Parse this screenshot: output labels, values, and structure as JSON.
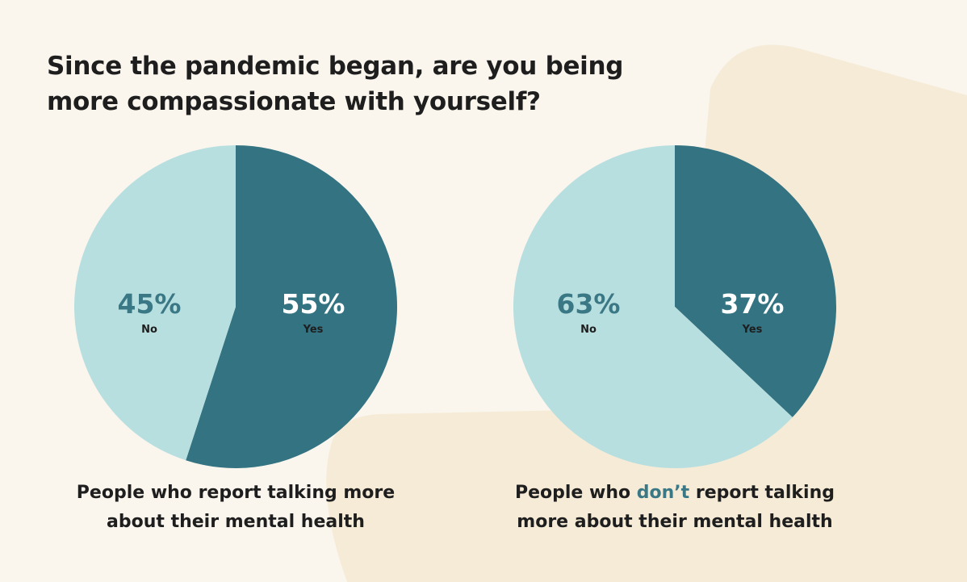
{
  "title": {
    "line1": "Since the pandemic began, are you being",
    "line2": "more compassionate with yourself?"
  },
  "colors": {
    "yes": "#347382",
    "no": "#b8dfe0",
    "background": "#faf6ee",
    "accent_shape": "#f6ebd6",
    "yes_label_text": "#ffffff",
    "no_label_text": "#3a7886",
    "highlight": "#3a7886"
  },
  "chart_data": [
    {
      "type": "pie",
      "categories": [
        "Yes",
        "No"
      ],
      "values": [
        55,
        45
      ],
      "labels": [
        {
          "value": "55%",
          "category": "Yes"
        },
        {
          "value": "45%",
          "category": "No"
        }
      ],
      "caption": {
        "line1": "People who report talking more",
        "line2": "about their mental health"
      }
    },
    {
      "type": "pie",
      "categories": [
        "Yes",
        "No"
      ],
      "values": [
        37,
        63
      ],
      "labels": [
        {
          "value": "37%",
          "category": "Yes"
        },
        {
          "value": "63%",
          "category": "No"
        }
      ],
      "caption": {
        "line1_pre": "People who ",
        "line1_highlight": "don’t",
        "line1_post": " report talking",
        "line2": "more about their mental health"
      }
    }
  ]
}
